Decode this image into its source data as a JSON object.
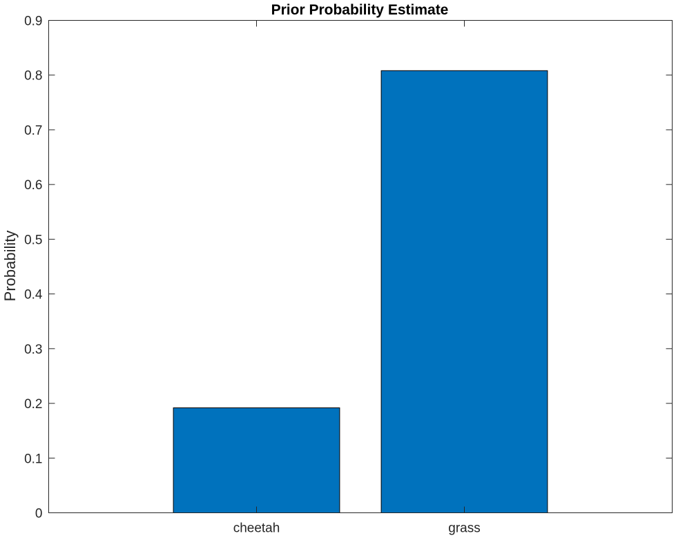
{
  "chart_data": {
    "type": "bar",
    "title": "Prior Probability Estimate",
    "xlabel": "",
    "ylabel": "Probability",
    "categories": [
      "cheetah",
      "grass"
    ],
    "values": [
      0.1919,
      0.8081
    ],
    "ylim": [
      0,
      0.9
    ],
    "yticks": [
      0,
      0.1,
      0.2,
      0.3,
      0.4,
      0.5,
      0.6,
      0.7,
      0.8,
      0.9
    ],
    "ytick_labels": [
      "0",
      "0.1",
      "0.2",
      "0.3",
      "0.4",
      "0.5",
      "0.6",
      "0.7",
      "0.8",
      "0.9"
    ],
    "grid": false,
    "bar_color": "#0072BD",
    "edge_color": "#000000"
  }
}
